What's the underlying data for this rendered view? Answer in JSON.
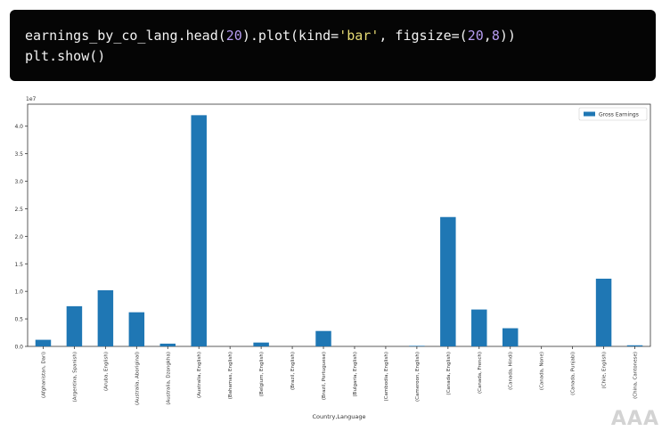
{
  "code": {
    "line1": {
      "prefix": "earnings_by_co_lang.head(",
      "num1": "20",
      "mid1": ").plot(kind=",
      "str1": "'bar'",
      "mid2": ", figsize=(",
      "num2": "20",
      "comma": ",",
      "num3": "8",
      "suffix": "))"
    },
    "line2": "plt.show()"
  },
  "colors": {
    "bar": "#1f77b4",
    "code_bg": "#050505"
  },
  "chart_data": {
    "type": "bar",
    "categories": [
      "(Afghanistan, Dari)",
      "(Argentina, Spanish)",
      "(Aruba, English)",
      "(Australia, Aboriginal)",
      "(Australia, Dzongkha)",
      "(Australia, English)",
      "(Bahamas, English)",
      "(Belgium, English)",
      "(Brazil, English)",
      "(Brazil, Portuguese)",
      "(Bulgaria, English)",
      "(Cambodia, English)",
      "(Cameroon, English)",
      "(Canada, English)",
      "(Canada, French)",
      "(Canada, Hindi)",
      "(Canada, None)",
      "(Canada, Punjabi)",
      "(Chile, English)",
      "(China, Cantonese)"
    ],
    "series": [
      {
        "name": "Gross Earnings",
        "values": [
          0.12,
          0.73,
          1.02,
          0.62,
          0.05,
          4.2,
          0.0,
          0.07,
          0.0,
          0.28,
          0.0,
          0.0,
          0.01,
          2.35,
          0.67,
          0.33,
          0.0,
          0.0,
          1.23,
          0.02
        ]
      }
    ],
    "yticks": [
      "0.0",
      "0.5",
      "1.0",
      "1.5",
      "2.0",
      "2.5",
      "3.0",
      "3.5",
      "4.0"
    ],
    "ylim": [
      0,
      4.4
    ],
    "offset_label": "1e7",
    "xlabel": "Country,Language",
    "ylabel": "",
    "legend_position": "top-right",
    "grid": false
  },
  "watermark": "AAA"
}
